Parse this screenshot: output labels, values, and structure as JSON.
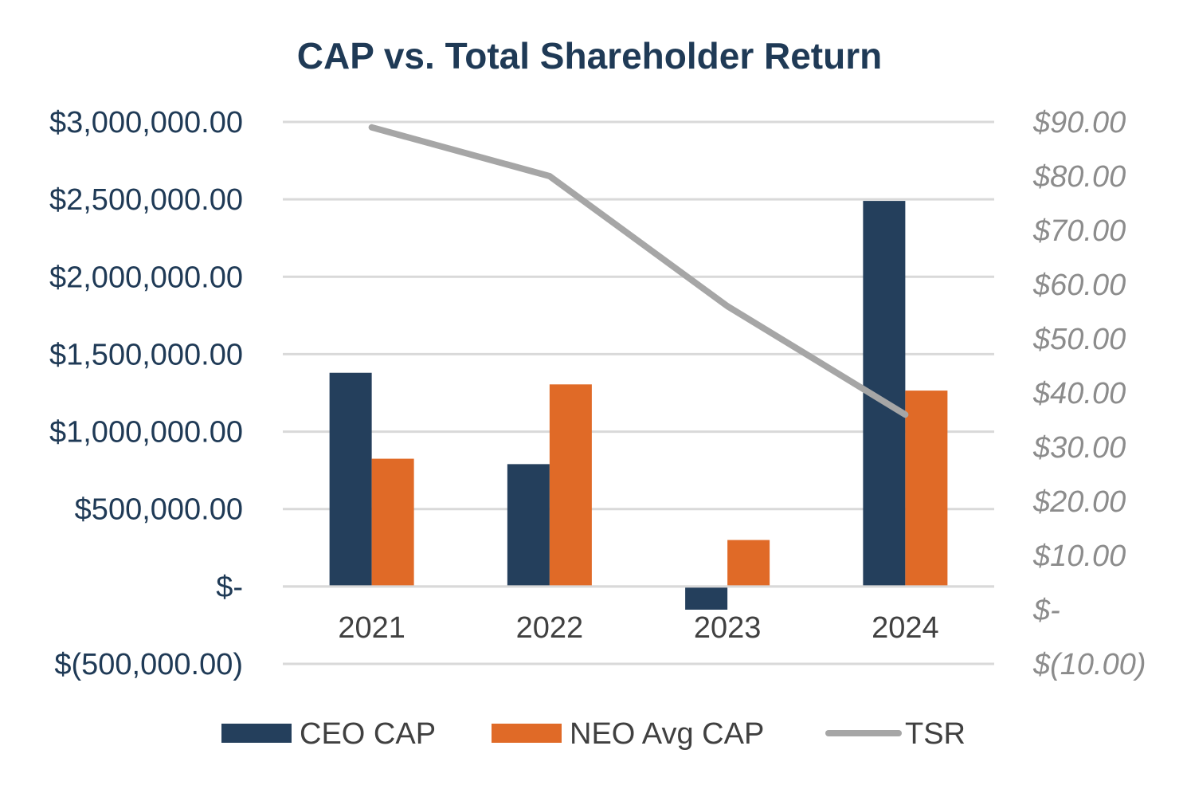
{
  "chart_data": {
    "type": "bar",
    "title": "CAP vs. Total Shareholder Return",
    "categories": [
      "2021",
      "2022",
      "2023",
      "2024"
    ],
    "series": [
      {
        "name": "CEO CAP",
        "kind": "bar",
        "axis": "left",
        "color": "#243f5c",
        "values": [
          1380000,
          790000,
          -150000,
          2490000
        ]
      },
      {
        "name": "NEO Avg CAP",
        "kind": "bar",
        "axis": "left",
        "color": "#e06a27",
        "values": [
          825000,
          1305000,
          300000,
          1265000
        ]
      },
      {
        "name": "TSR",
        "kind": "line",
        "axis": "right",
        "color": "#a6a6a6",
        "values": [
          89.0,
          80.0,
          56.0,
          36.0
        ]
      }
    ],
    "y_left": {
      "lim": [
        -500000,
        3000000
      ],
      "ticks": [
        3000000,
        2500000,
        2000000,
        1500000,
        1000000,
        500000,
        0,
        -500000
      ],
      "tick_labels": [
        "$3,000,000.00",
        "$2,500,000.00",
        "$2,000,000.00",
        "$1,500,000.00",
        "$1,000,000.00",
        "$500,000.00",
        "$-",
        "$(500,000.00)"
      ]
    },
    "y_right": {
      "lim": [
        -10,
        90
      ],
      "ticks": [
        90,
        80,
        70,
        60,
        50,
        40,
        30,
        20,
        10,
        0,
        -10
      ],
      "tick_labels": [
        "$90.00",
        "$80.00",
        "$70.00",
        "$60.00",
        "$50.00",
        "$40.00",
        "$30.00",
        "$20.00",
        "$10.00",
        "$-",
        "$(10.00)"
      ]
    },
    "grid": true,
    "legend_position": "bottom"
  }
}
